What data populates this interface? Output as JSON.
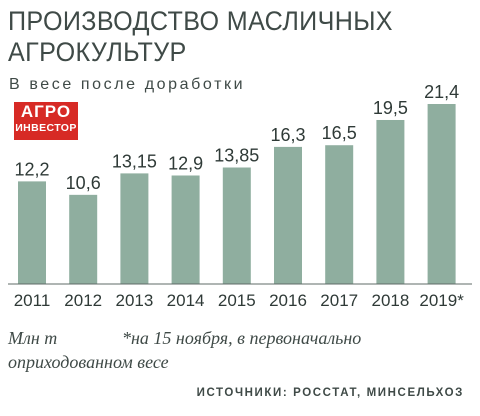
{
  "title_lines": [
    "ПРОИЗВОДСТВО МАСЛИЧНЫХ",
    "АГРОКУЛЬТУР"
  ],
  "subtitle": "В весе после доработки",
  "logo": {
    "line1": "АГРО",
    "line2": "ИНВЕСТОР"
  },
  "chart_data": {
    "type": "bar",
    "title": "ПРОИЗВОДСТВО МАСЛИЧНЫХ АГРОКУЛЬТУР",
    "subtitle": "В весе после доработки",
    "categories": [
      "2011",
      "2012",
      "2013",
      "2014",
      "2015",
      "2016",
      "2017",
      "2018",
      "2019*"
    ],
    "values": [
      12.2,
      10.6,
      13.15,
      12.9,
      13.85,
      16.3,
      16.5,
      19.5,
      21.4
    ],
    "value_labels": [
      "12,2",
      "10,6",
      "13,15",
      "12,9",
      "13,85",
      "16,3",
      "16,5",
      "19,5",
      "21,4"
    ],
    "ylabel": "Млн т",
    "ylim": [
      0,
      21.4
    ],
    "grid": false,
    "bar_color": "#8fae9f"
  },
  "notes": {
    "units": "Млн т",
    "footnote_line1": "*на 15 ноября, в первоначально",
    "footnote_line2": "оприходованном весе"
  },
  "sources": "ИСТОЧНИКИ: РОССТАТ, МИНСЕЛЬХОЗ"
}
